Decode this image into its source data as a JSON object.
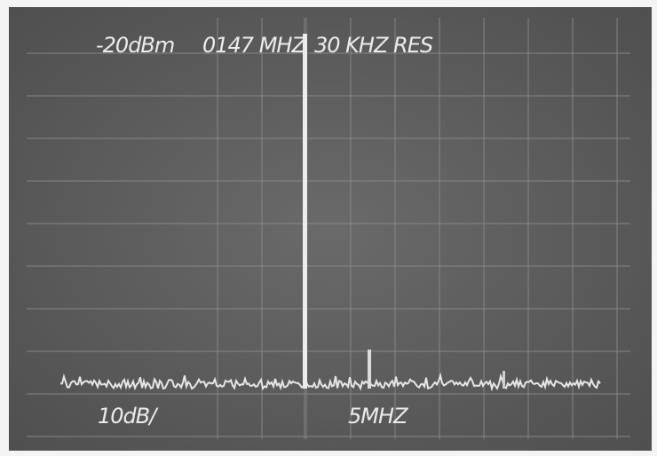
{
  "screen": {
    "reference_level": "-20dBm",
    "center_frequency": "0147 MHZ",
    "resolution": "30 KHZ RES",
    "vertical_scale": "10dB/",
    "span": "5MHZ"
  }
}
